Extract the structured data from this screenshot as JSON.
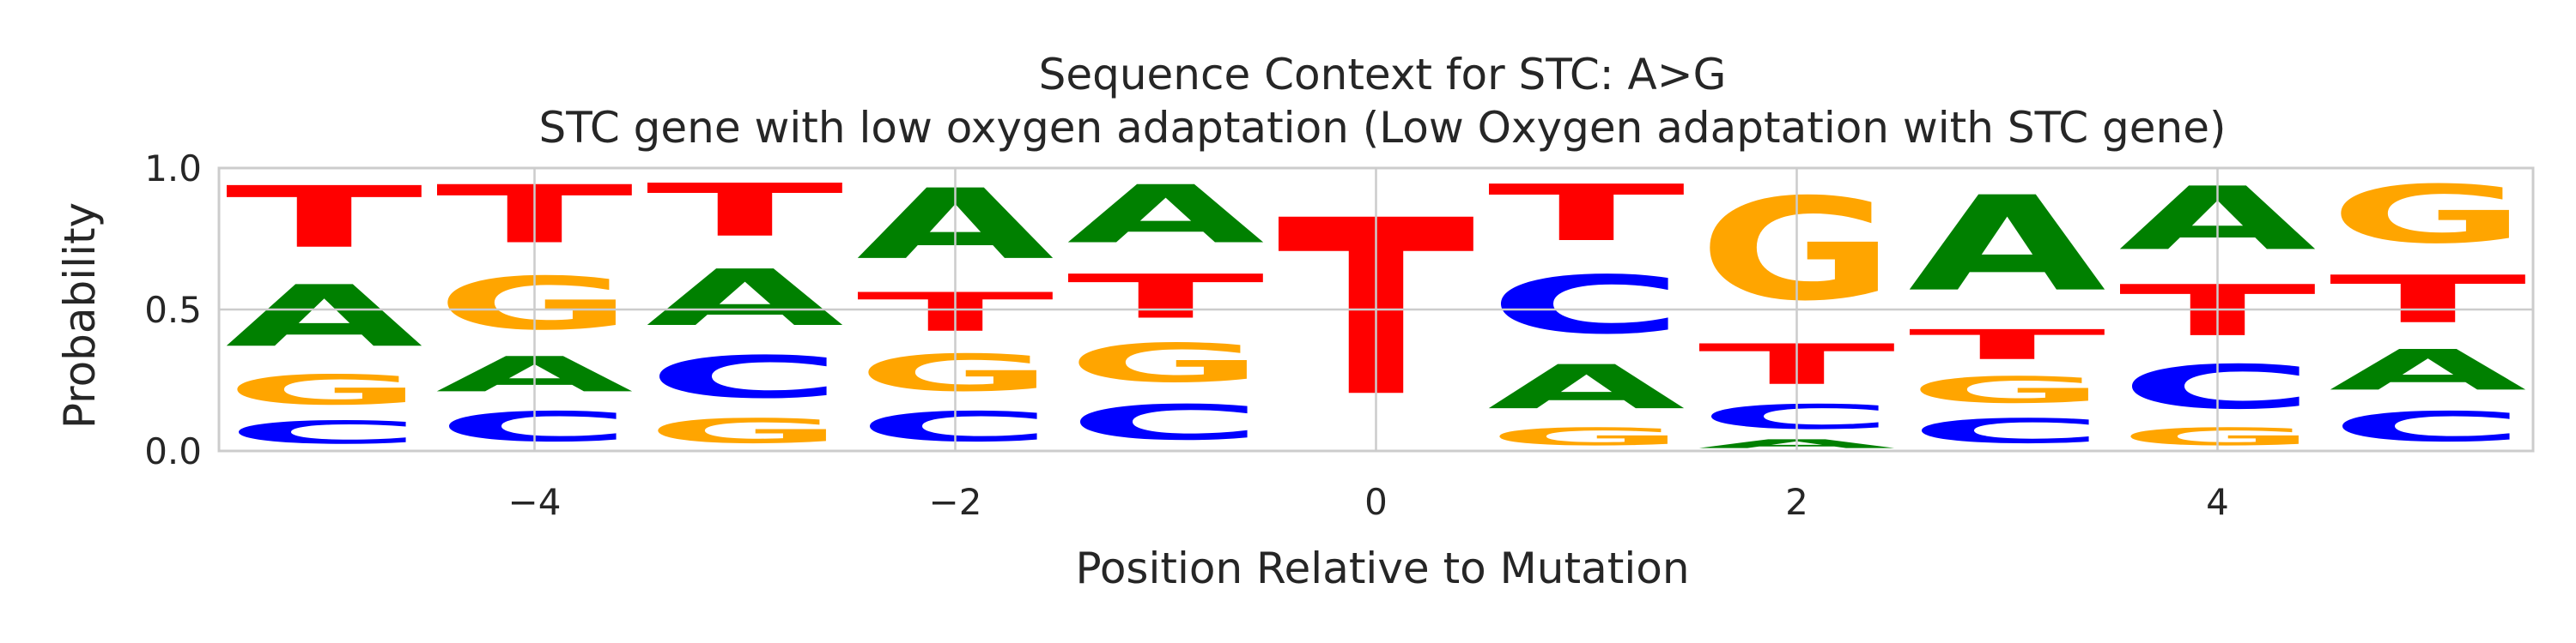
{
  "chart_data": {
    "type": "sequence_logo",
    "title": "Sequence Context for STC: A>G",
    "subtitle": "STC gene with low oxygen adaptation (Low Oxygen adaptation with STC gene)",
    "xlabel": "Position Relative to Mutation",
    "ylabel": "Probability",
    "xlim": [
      -5.5,
      5.5
    ],
    "ylim": [
      0,
      1
    ],
    "x_ticks": [
      -4,
      -2,
      0,
      2,
      4
    ],
    "y_ticks": [
      0.0,
      0.5,
      1.0
    ],
    "x_tick_labels": [
      "−4",
      "−2",
      "0",
      "2",
      "4"
    ],
    "y_tick_labels": [
      "0.0",
      "0.5",
      "1.0"
    ],
    "grid": true,
    "colors": {
      "A": "#008000",
      "C": "#0000ff",
      "G": "#ffa500",
      "T": "#ff0000"
    },
    "positions": [
      {
        "x": -5,
        "letters": [
          {
            "base": "C",
            "p": 0.13
          },
          {
            "base": "G",
            "p": 0.17
          },
          {
            "base": "A",
            "p": 0.35
          },
          {
            "base": "T",
            "p": 0.35
          }
        ]
      },
      {
        "x": -4,
        "letters": [
          {
            "base": "C",
            "p": 0.17
          },
          {
            "base": "A",
            "p": 0.2
          },
          {
            "base": "G",
            "p": 0.3
          },
          {
            "base": "T",
            "p": 0.33
          }
        ]
      },
      {
        "x": -3,
        "letters": [
          {
            "base": "G",
            "p": 0.14
          },
          {
            "base": "C",
            "p": 0.24
          },
          {
            "base": "A",
            "p": 0.32
          },
          {
            "base": "T",
            "p": 0.3
          }
        ]
      },
      {
        "x": -2,
        "letters": [
          {
            "base": "C",
            "p": 0.17
          },
          {
            "base": "G",
            "p": 0.21
          },
          {
            "base": "T",
            "p": 0.22
          },
          {
            "base": "A",
            "p": 0.4
          }
        ]
      },
      {
        "x": -1,
        "letters": [
          {
            "base": "C",
            "p": 0.2
          },
          {
            "base": "G",
            "p": 0.22
          },
          {
            "base": "T",
            "p": 0.25
          },
          {
            "base": "A",
            "p": 0.33
          }
        ]
      },
      {
        "x": 0,
        "letters": [
          {
            "base": "T",
            "p": 1.0
          }
        ]
      },
      {
        "x": 1,
        "letters": [
          {
            "base": "G",
            "p": 0.1
          },
          {
            "base": "A",
            "p": 0.25
          },
          {
            "base": "C",
            "p": 0.33
          },
          {
            "base": "T",
            "p": 0.32
          }
        ]
      },
      {
        "x": 2,
        "letters": [
          {
            "base": "A",
            "p": 0.05
          },
          {
            "base": "C",
            "p": 0.14
          },
          {
            "base": "T",
            "p": 0.23
          },
          {
            "base": "G",
            "p": 0.58
          }
        ]
      },
      {
        "x": 3,
        "letters": [
          {
            "base": "C",
            "p": 0.14
          },
          {
            "base": "G",
            "p": 0.15
          },
          {
            "base": "T",
            "p": 0.17
          },
          {
            "base": "A",
            "p": 0.54
          }
        ]
      },
      {
        "x": 4,
        "letters": [
          {
            "base": "G",
            "p": 0.1
          },
          {
            "base": "C",
            "p": 0.25
          },
          {
            "base": "T",
            "p": 0.29
          },
          {
            "base": "A",
            "p": 0.36
          }
        ]
      },
      {
        "x": 5,
        "letters": [
          {
            "base": "C",
            "p": 0.17
          },
          {
            "base": "A",
            "p": 0.23
          },
          {
            "base": "T",
            "p": 0.27
          },
          {
            "base": "G",
            "p": 0.33
          }
        ]
      }
    ]
  }
}
